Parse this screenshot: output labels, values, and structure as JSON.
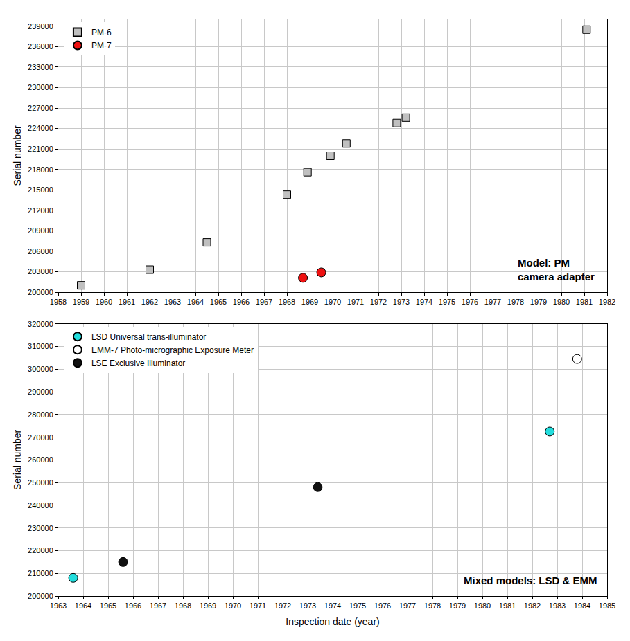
{
  "chart_data": [
    {
      "type": "scatter",
      "annotation": [
        "Model: PM",
        "camera adapter"
      ],
      "y_label": "Serial number",
      "xlim": [
        1958,
        1982
      ],
      "xticks": [
        1958,
        1959,
        1960,
        1961,
        1962,
        1963,
        1964,
        1965,
        1966,
        1967,
        1968,
        1969,
        1970,
        1971,
        1972,
        1973,
        1974,
        1975,
        1976,
        1977,
        1978,
        1979,
        1980,
        1981,
        1982
      ],
      "ylim": [
        200000,
        240000
      ],
      "yticks": [
        200000,
        203000,
        206000,
        209000,
        212000,
        215000,
        218000,
        221000,
        224000,
        227000,
        230000,
        233000,
        236000,
        239000
      ],
      "grid": true,
      "legend": "upper left",
      "series": [
        {
          "name": "PM-6",
          "color": "#c0c0c0",
          "marker": "square",
          "x": [
            1959.0,
            1962.0,
            1964.5,
            1968.0,
            1968.9,
            1969.9,
            1970.6,
            1972.8,
            1973.2,
            1981.1
          ],
          "values": [
            201000,
            203300,
            207300,
            214300,
            217600,
            220000,
            221800,
            224800,
            225600,
            238500
          ]
        },
        {
          "name": "PM-7",
          "color": "#ee1111",
          "marker": "circle",
          "x": [
            1968.7,
            1969.5
          ],
          "values": [
            202100,
            202900
          ]
        }
      ]
    },
    {
      "type": "scatter",
      "annotation": [
        "Mixed models: LSD & EMM"
      ],
      "x_label": "Inspection date (year)",
      "y_label": "Serial number",
      "xlim": [
        1963,
        1985
      ],
      "xticks": [
        1963,
        1964,
        1965,
        1966,
        1967,
        1968,
        1969,
        1970,
        1971,
        1972,
        1973,
        1974,
        1975,
        1976,
        1977,
        1978,
        1979,
        1980,
        1981,
        1982,
        1983,
        1984,
        1985
      ],
      "ylim": [
        200000,
        320000
      ],
      "yticks": [
        200000,
        210000,
        220000,
        230000,
        240000,
        250000,
        260000,
        270000,
        280000,
        290000,
        300000,
        310000,
        320000
      ],
      "grid": true,
      "legend": "upper left",
      "series": [
        {
          "name": "LSD Universal trans-illuminator",
          "color": "#22dddd",
          "marker": "circle",
          "x": [
            1963.6,
            1982.7
          ],
          "values": [
            208000,
            272500
          ]
        },
        {
          "name": "EMM-7 Photo-micrographic Exposure Meter",
          "color": "#ffffff",
          "marker": "circle",
          "x": [
            1983.8
          ],
          "values": [
            304500
          ]
        },
        {
          "name": "LSE Exclusive Illuminator",
          "color": "#111111",
          "marker": "circle",
          "x": [
            1965.6,
            1973.4
          ],
          "values": [
            215000,
            248000
          ]
        }
      ]
    }
  ]
}
